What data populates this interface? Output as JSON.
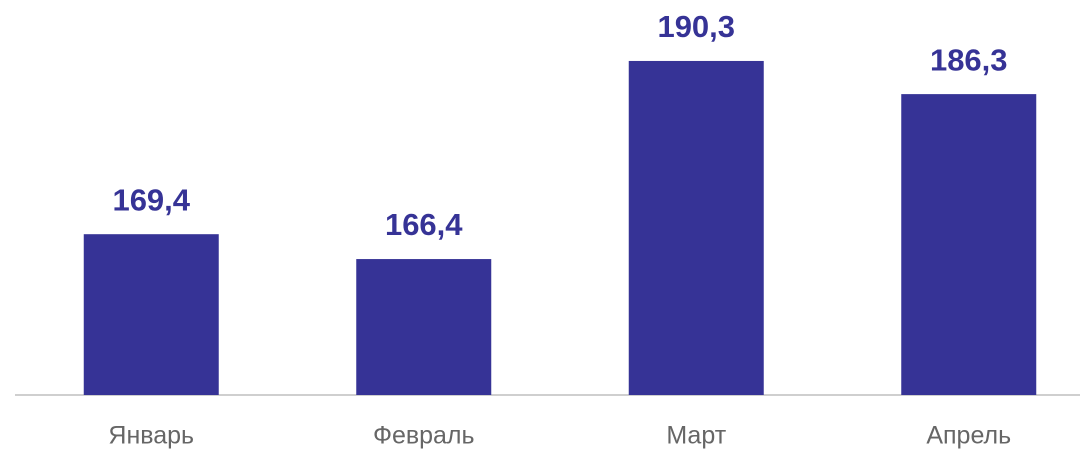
{
  "chart_data": {
    "type": "bar",
    "categories": [
      "Январь",
      "Февраль",
      "Март",
      "Апрель"
    ],
    "values": [
      169.4,
      166.4,
      190.3,
      186.3
    ],
    "value_labels": [
      "169,4",
      "166,4",
      "190,3",
      "186,3"
    ],
    "color": "#363396",
    "ylim": [
      150,
      195
    ]
  }
}
